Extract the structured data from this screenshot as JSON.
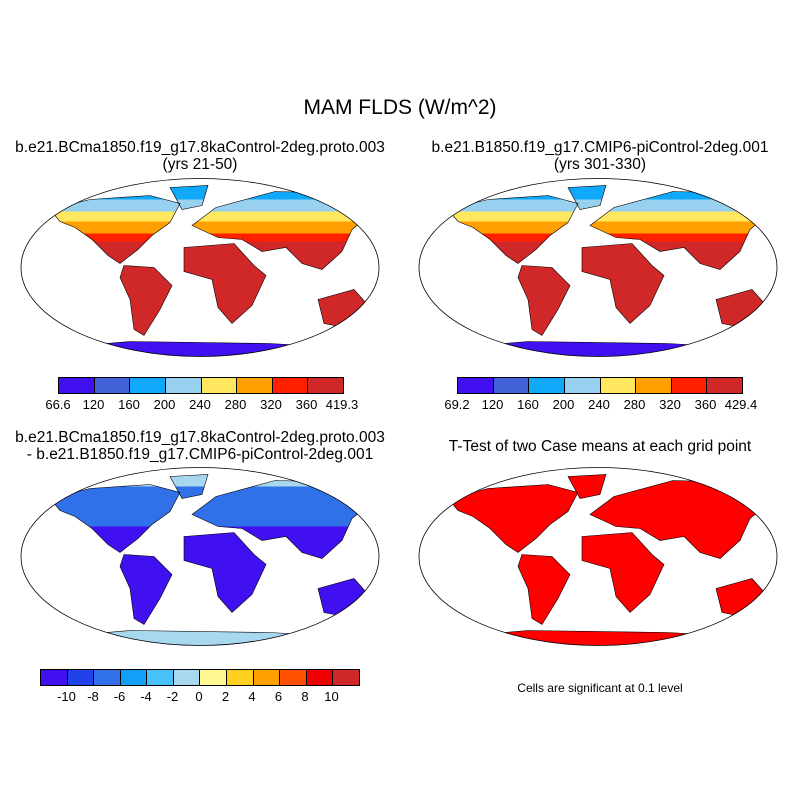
{
  "title": "MAM FLDS (W/m^2)",
  "panels": [
    {
      "title_line1": "b.e21.BCma1850.f19_g17.8kaControl-2deg.proto.003",
      "title_line2": "(yrs 21-50)",
      "colorbar": {
        "labels": [
          "66.6",
          "120",
          "160",
          "200",
          "240",
          "280",
          "320",
          "360",
          "419.3"
        ],
        "colors": [
          "#4010f0",
          "#4060d8",
          "#10a8f8",
          "#98d0f0",
          "#ffe860",
          "#ffa000",
          "#ff2000",
          "#d02828"
        ]
      }
    },
    {
      "title_line1": "b.e21.B1850.f19_g17.CMIP6-piControl-2deg.001",
      "title_line2": "(yrs 301-330)",
      "colorbar": {
        "labels": [
          "69.2",
          "120",
          "160",
          "200",
          "240",
          "280",
          "320",
          "360",
          "429.4"
        ],
        "colors": [
          "#4010f0",
          "#4060d8",
          "#10a8f8",
          "#98d0f0",
          "#ffe860",
          "#ffa000",
          "#ff2000",
          "#d02828"
        ]
      }
    },
    {
      "title_line1": "b.e21.BCma1850.f19_g17.8kaControl-2deg.proto.003",
      "title_line2": "- b.e21.B1850.f19_g17.CMIP6-piControl-2deg.001",
      "colorbar": {
        "labels": [
          "-10",
          "-8",
          "-6",
          "-4",
          "-2",
          "0",
          "2",
          "4",
          "6",
          "8",
          "10"
        ],
        "colors": [
          "#4010f0",
          "#2040e8",
          "#3070e8",
          "#10a0f8",
          "#48c0f8",
          "#a8d8f0",
          "#fff890",
          "#ffd020",
          "#ffa000",
          "#ff5000",
          "#f00000",
          "#d02828"
        ]
      }
    },
    {
      "title_line1": "T-Test of two Case means at each grid point",
      "note": "Cells are significant at 0.1 level",
      "significant_color": "#ff0000"
    }
  ],
  "chart_data": {
    "type": "heatmap",
    "title": "MAM FLDS (W/m^2)",
    "variable": "FLDS",
    "units": "W/m^2",
    "panels": [
      {
        "name": "8kaControl",
        "levels": [
          120,
          160,
          200,
          240,
          280,
          320,
          360
        ],
        "min": 66.6,
        "max": 419.3
      },
      {
        "name": "piControl",
        "levels": [
          120,
          160,
          200,
          240,
          280,
          320,
          360
        ],
        "min": 69.2,
        "max": 429.4
      },
      {
        "name": "difference",
        "levels": [
          -10,
          -8,
          -6,
          -4,
          -2,
          0,
          2,
          4,
          6,
          8,
          10
        ]
      },
      {
        "name": "t-test",
        "significance": 0.1
      }
    ]
  }
}
